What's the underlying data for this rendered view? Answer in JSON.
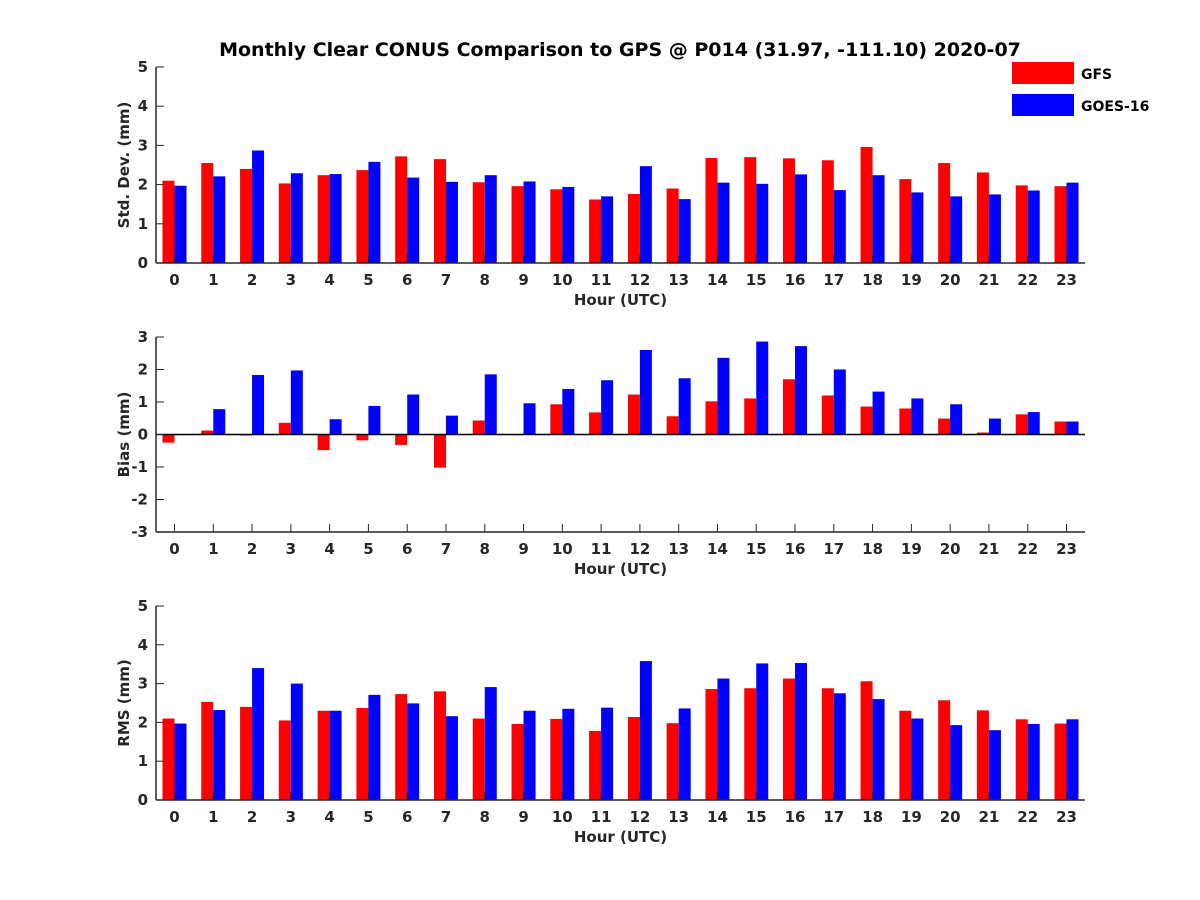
{
  "title": "Monthly Clear CONUS Comparison to GPS @ P014 (31.97, -111.10) 2020-07",
  "colors": {
    "GFS": "#ff0000",
    "GOES-16": "#0000ff",
    "axis": "#262626"
  },
  "legend": {
    "position": "top-right",
    "entries": [
      "GFS",
      "GOES-16"
    ]
  },
  "chart_data": [
    {
      "type": "bar",
      "xlabel": "Hour (UTC)",
      "ylabel": "Std. Dev. (mm)",
      "ylim": [
        0,
        5
      ],
      "yticks": [
        0,
        1,
        2,
        3,
        4,
        5
      ],
      "grid": false,
      "categories": [
        "0",
        "1",
        "2",
        "3",
        "4",
        "5",
        "6",
        "7",
        "8",
        "9",
        "10",
        "11",
        "12",
        "13",
        "14",
        "15",
        "16",
        "17",
        "18",
        "19",
        "20",
        "21",
        "22",
        "23"
      ],
      "series": [
        {
          "name": "GFS",
          "values": [
            2.1,
            2.55,
            2.4,
            2.03,
            2.24,
            2.37,
            2.72,
            2.65,
            2.06,
            1.96,
            1.88,
            1.62,
            1.76,
            1.9,
            2.68,
            2.7,
            2.67,
            2.62,
            2.96,
            2.14,
            2.55,
            2.31,
            1.98,
            1.96
          ]
        },
        {
          "name": "GOES-16",
          "values": [
            1.97,
            2.21,
            2.87,
            2.29,
            2.27,
            2.58,
            2.18,
            2.07,
            2.24,
            2.08,
            1.94,
            1.7,
            2.47,
            1.63,
            2.05,
            2.02,
            2.26,
            1.86,
            2.24,
            1.8,
            1.7,
            1.75,
            1.85,
            2.05
          ]
        }
      ]
    },
    {
      "type": "bar",
      "xlabel": "Hour (UTC)",
      "ylabel": "Bias (mm)",
      "ylim": [
        -3,
        3
      ],
      "yticks": [
        -3,
        -2,
        -1,
        0,
        1,
        2,
        3
      ],
      "grid": false,
      "categories": [
        "0",
        "1",
        "2",
        "3",
        "4",
        "5",
        "6",
        "7",
        "8",
        "9",
        "10",
        "11",
        "12",
        "13",
        "14",
        "15",
        "16",
        "17",
        "18",
        "19",
        "20",
        "21",
        "22",
        "23"
      ],
      "series": [
        {
          "name": "GFS",
          "values": [
            -0.25,
            0.12,
            -0.03,
            0.36,
            -0.48,
            -0.18,
            -0.32,
            -1.02,
            0.43,
            -0.02,
            0.93,
            0.68,
            1.23,
            0.56,
            1.02,
            1.11,
            1.7,
            1.2,
            0.86,
            0.8,
            0.49,
            0.06,
            0.62,
            0.4
          ]
        },
        {
          "name": "GOES-16",
          "values": [
            0.0,
            0.78,
            1.83,
            1.97,
            0.47,
            0.88,
            1.23,
            0.58,
            1.85,
            0.96,
            1.4,
            1.67,
            2.6,
            1.73,
            2.36,
            2.86,
            2.72,
            2.0,
            1.32,
            1.11,
            0.93,
            0.49,
            0.69,
            0.4
          ]
        }
      ]
    },
    {
      "type": "bar",
      "xlabel": "Hour (UTC)",
      "ylabel": "RMS (mm)",
      "ylim": [
        0,
        5
      ],
      "yticks": [
        0,
        1,
        2,
        3,
        4,
        5
      ],
      "grid": false,
      "categories": [
        "0",
        "1",
        "2",
        "3",
        "4",
        "5",
        "6",
        "7",
        "8",
        "9",
        "10",
        "11",
        "12",
        "13",
        "14",
        "15",
        "16",
        "17",
        "18",
        "19",
        "20",
        "21",
        "22",
        "23"
      ],
      "series": [
        {
          "name": "GFS",
          "values": [
            2.1,
            2.53,
            2.4,
            2.05,
            2.3,
            2.37,
            2.73,
            2.8,
            2.1,
            1.96,
            2.09,
            1.78,
            2.14,
            1.98,
            2.86,
            2.88,
            3.13,
            2.88,
            3.06,
            2.3,
            2.57,
            2.31,
            2.08,
            1.97
          ]
        },
        {
          "name": "GOES-16",
          "values": [
            1.97,
            2.32,
            3.4,
            3.0,
            2.3,
            2.71,
            2.49,
            2.16,
            2.91,
            2.3,
            2.35,
            2.38,
            3.58,
            2.36,
            3.13,
            3.52,
            3.53,
            2.75,
            2.6,
            2.1,
            1.93,
            1.8,
            1.96,
            2.08
          ]
        }
      ]
    }
  ]
}
